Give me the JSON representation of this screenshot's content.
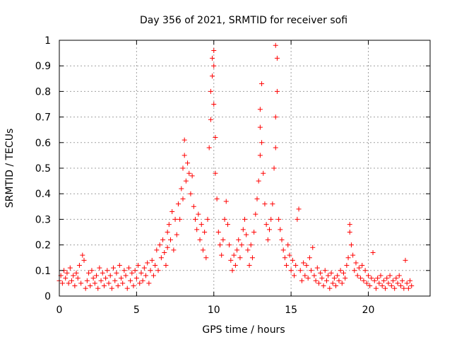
{
  "chart_data": {
    "type": "scatter",
    "title": "Day 356 of 2021, SRMTID for receiver sofi",
    "xlabel": "GPS time / hours",
    "ylabel": "SRMTID / TECUs",
    "xlim": [
      0,
      24
    ],
    "ylim": [
      0,
      1
    ],
    "x_ticks": [
      {
        "value": 0,
        "label": "0"
      },
      {
        "value": 5,
        "label": "5"
      },
      {
        "value": 10,
        "label": "10"
      },
      {
        "value": 15,
        "label": "15"
      },
      {
        "value": 20,
        "label": "20"
      }
    ],
    "y_ticks": [
      {
        "value": 0,
        "label": "0"
      },
      {
        "value": 0.1,
        "label": "0.1"
      },
      {
        "value": 0.2,
        "label": "0.2"
      },
      {
        "value": 0.3,
        "label": "0.3"
      },
      {
        "value": 0.4,
        "label": "0.4"
      },
      {
        "value": 0.5,
        "label": "0.5"
      },
      {
        "value": 0.6,
        "label": "0.6"
      },
      {
        "value": 0.7,
        "label": "0.7"
      },
      {
        "value": 0.8,
        "label": "0.8"
      },
      {
        "value": 0.9,
        "label": "0.9"
      },
      {
        "value": 1,
        "label": "1"
      }
    ],
    "grid": true,
    "marker": "plus",
    "color": "#ff0000",
    "series": [
      {
        "name": "SRMTID",
        "points": [
          [
            0.0,
            0.06
          ],
          [
            0.1,
            0.08
          ],
          [
            0.2,
            0.05
          ],
          [
            0.3,
            0.1
          ],
          [
            0.4,
            0.07
          ],
          [
            0.5,
            0.09
          ],
          [
            0.6,
            0.05
          ],
          [
            0.7,
            0.11
          ],
          [
            0.8,
            0.06
          ],
          [
            0.9,
            0.08
          ],
          [
            1.0,
            0.04
          ],
          [
            1.1,
            0.09
          ],
          [
            1.2,
            0.07
          ],
          [
            1.3,
            0.12
          ],
          [
            1.4,
            0.05
          ],
          [
            1.5,
            0.16
          ],
          [
            1.6,
            0.14
          ],
          [
            1.7,
            0.03
          ],
          [
            1.8,
            0.06
          ],
          [
            1.9,
            0.09
          ],
          [
            2.0,
            0.04
          ],
          [
            2.1,
            0.1
          ],
          [
            2.2,
            0.07
          ],
          [
            2.3,
            0.05
          ],
          [
            2.4,
            0.08
          ],
          [
            2.5,
            0.03
          ],
          [
            2.6,
            0.11
          ],
          [
            2.7,
            0.06
          ],
          [
            2.8,
            0.09
          ],
          [
            2.9,
            0.04
          ],
          [
            3.0,
            0.07
          ],
          [
            3.1,
            0.1
          ],
          [
            3.2,
            0.05
          ],
          [
            3.3,
            0.08
          ],
          [
            3.4,
            0.03
          ],
          [
            3.5,
            0.11
          ],
          [
            3.6,
            0.06
          ],
          [
            3.7,
            0.09
          ],
          [
            3.8,
            0.04
          ],
          [
            3.9,
            0.12
          ],
          [
            4.0,
            0.07
          ],
          [
            4.1,
            0.05
          ],
          [
            4.2,
            0.1
          ],
          [
            4.3,
            0.08
          ],
          [
            4.4,
            0.03
          ],
          [
            4.5,
            0.11
          ],
          [
            4.6,
            0.06
          ],
          [
            4.7,
            0.09
          ],
          [
            4.8,
            0.04
          ],
          [
            4.9,
            0.1
          ],
          [
            5.0,
            0.07
          ],
          [
            5.1,
            0.12
          ],
          [
            5.2,
            0.05
          ],
          [
            5.3,
            0.09
          ],
          [
            5.4,
            0.06
          ],
          [
            5.5,
            0.11
          ],
          [
            5.6,
            0.08
          ],
          [
            5.7,
            0.13
          ],
          [
            5.8,
            0.05
          ],
          [
            5.9,
            0.1
          ],
          [
            6.0,
            0.14
          ],
          [
            6.1,
            0.08
          ],
          [
            6.2,
            0.12
          ],
          [
            6.3,
            0.18
          ],
          [
            6.4,
            0.1
          ],
          [
            6.5,
            0.2
          ],
          [
            6.6,
            0.15
          ],
          [
            6.7,
            0.22
          ],
          [
            6.8,
            0.17
          ],
          [
            6.9,
            0.12
          ],
          [
            7.0,
            0.25
          ],
          [
            7.0,
            0.19
          ],
          [
            7.1,
            0.28
          ],
          [
            7.2,
            0.22
          ],
          [
            7.3,
            0.33
          ],
          [
            7.4,
            0.18
          ],
          [
            7.5,
            0.3
          ],
          [
            7.6,
            0.24
          ],
          [
            7.7,
            0.36
          ],
          [
            7.8,
            0.3
          ],
          [
            7.9,
            0.42
          ],
          [
            8.0,
            0.5
          ],
          [
            8.0,
            0.38
          ],
          [
            8.1,
            0.61
          ],
          [
            8.1,
            0.55
          ],
          [
            8.2,
            0.45
          ],
          [
            8.3,
            0.52
          ],
          [
            8.4,
            0.48
          ],
          [
            8.5,
            0.4
          ],
          [
            8.6,
            0.47
          ],
          [
            8.7,
            0.35
          ],
          [
            8.8,
            0.3
          ],
          [
            8.9,
            0.26
          ],
          [
            9.0,
            0.32
          ],
          [
            9.1,
            0.22
          ],
          [
            9.2,
            0.28
          ],
          [
            9.3,
            0.18
          ],
          [
            9.4,
            0.25
          ],
          [
            9.5,
            0.15
          ],
          [
            9.6,
            0.3
          ],
          [
            9.7,
            0.58
          ],
          [
            9.8,
            0.69
          ],
          [
            9.8,
            0.8
          ],
          [
            9.9,
            0.86
          ],
          [
            9.9,
            0.93
          ],
          [
            10.0,
            0.96
          ],
          [
            10.0,
            0.9
          ],
          [
            10.0,
            0.75
          ],
          [
            10.1,
            0.62
          ],
          [
            10.1,
            0.48
          ],
          [
            10.2,
            0.38
          ],
          [
            10.3,
            0.25
          ],
          [
            10.4,
            0.2
          ],
          [
            10.5,
            0.16
          ],
          [
            10.6,
            0.22
          ],
          [
            10.7,
            0.3
          ],
          [
            10.8,
            0.37
          ],
          [
            10.9,
            0.28
          ],
          [
            11.0,
            0.2
          ],
          [
            11.1,
            0.14
          ],
          [
            11.2,
            0.1
          ],
          [
            11.3,
            0.16
          ],
          [
            11.4,
            0.12
          ],
          [
            11.5,
            0.18
          ],
          [
            11.6,
            0.22
          ],
          [
            11.7,
            0.15
          ],
          [
            11.8,
            0.2
          ],
          [
            11.9,
            0.26
          ],
          [
            12.0,
            0.3
          ],
          [
            12.1,
            0.24
          ],
          [
            12.2,
            0.18
          ],
          [
            12.3,
            0.12
          ],
          [
            12.4,
            0.2
          ],
          [
            12.5,
            0.15
          ],
          [
            12.6,
            0.25
          ],
          [
            12.7,
            0.32
          ],
          [
            12.8,
            0.38
          ],
          [
            12.9,
            0.45
          ],
          [
            13.0,
            0.55
          ],
          [
            13.0,
            0.66
          ],
          [
            13.0,
            0.73
          ],
          [
            13.1,
            0.83
          ],
          [
            13.1,
            0.6
          ],
          [
            13.2,
            0.48
          ],
          [
            13.3,
            0.36
          ],
          [
            13.4,
            0.28
          ],
          [
            13.5,
            0.22
          ],
          [
            13.6,
            0.26
          ],
          [
            13.7,
            0.3
          ],
          [
            13.8,
            0.36
          ],
          [
            13.9,
            0.5
          ],
          [
            14.0,
            0.58
          ],
          [
            14.0,
            0.7
          ],
          [
            14.1,
            0.8
          ],
          [
            14.1,
            0.93
          ],
          [
            14.0,
            0.98
          ],
          [
            14.2,
            0.3
          ],
          [
            14.3,
            0.26
          ],
          [
            14.4,
            0.22
          ],
          [
            14.5,
            0.18
          ],
          [
            14.6,
            0.15
          ],
          [
            14.7,
            0.12
          ],
          [
            14.8,
            0.2
          ],
          [
            14.9,
            0.16
          ],
          [
            15.0,
            0.1
          ],
          [
            15.1,
            0.14
          ],
          [
            15.2,
            0.08
          ],
          [
            15.3,
            0.12
          ],
          [
            15.4,
            0.3
          ],
          [
            15.5,
            0.34
          ],
          [
            15.6,
            0.1
          ],
          [
            15.7,
            0.06
          ],
          [
            15.8,
            0.13
          ],
          [
            15.9,
            0.08
          ],
          [
            16.0,
            0.12
          ],
          [
            16.1,
            0.07
          ],
          [
            16.2,
            0.15
          ],
          [
            16.3,
            0.1
          ],
          [
            16.4,
            0.19
          ],
          [
            16.5,
            0.08
          ],
          [
            16.6,
            0.06
          ],
          [
            16.7,
            0.11
          ],
          [
            16.8,
            0.05
          ],
          [
            16.9,
            0.09
          ],
          [
            17.0,
            0.07
          ],
          [
            17.1,
            0.04
          ],
          [
            17.2,
            0.1
          ],
          [
            17.3,
            0.06
          ],
          [
            17.4,
            0.08
          ],
          [
            17.5,
            0.03
          ],
          [
            17.6,
            0.09
          ],
          [
            17.7,
            0.05
          ],
          [
            17.8,
            0.07
          ],
          [
            17.9,
            0.04
          ],
          [
            18.0,
            0.08
          ],
          [
            18.1,
            0.06
          ],
          [
            18.2,
            0.1
          ],
          [
            18.3,
            0.05
          ],
          [
            18.4,
            0.09
          ],
          [
            18.5,
            0.07
          ],
          [
            18.6,
            0.12
          ],
          [
            18.7,
            0.15
          ],
          [
            18.8,
            0.25
          ],
          [
            18.8,
            0.28
          ],
          [
            18.9,
            0.2
          ],
          [
            19.0,
            0.16
          ],
          [
            19.1,
            0.1
          ],
          [
            19.2,
            0.13
          ],
          [
            19.3,
            0.08
          ],
          [
            19.4,
            0.11
          ],
          [
            19.5,
            0.07
          ],
          [
            19.6,
            0.12
          ],
          [
            19.7,
            0.06
          ],
          [
            19.8,
            0.1
          ],
          [
            19.9,
            0.05
          ],
          [
            20.0,
            0.08
          ],
          [
            20.1,
            0.04
          ],
          [
            20.2,
            0.07
          ],
          [
            20.3,
            0.17
          ],
          [
            20.4,
            0.06
          ],
          [
            20.5,
            0.03
          ],
          [
            20.6,
            0.07
          ],
          [
            20.7,
            0.05
          ],
          [
            20.8,
            0.08
          ],
          [
            20.9,
            0.04
          ],
          [
            21.0,
            0.06
          ],
          [
            21.1,
            0.03
          ],
          [
            21.2,
            0.07
          ],
          [
            21.3,
            0.05
          ],
          [
            21.4,
            0.08
          ],
          [
            21.5,
            0.04
          ],
          [
            21.6,
            0.06
          ],
          [
            21.7,
            0.03
          ],
          [
            21.8,
            0.07
          ],
          [
            21.9,
            0.05
          ],
          [
            22.0,
            0.08
          ],
          [
            22.1,
            0.04
          ],
          [
            22.2,
            0.06
          ],
          [
            22.3,
            0.03
          ],
          [
            22.4,
            0.14
          ],
          [
            22.5,
            0.05
          ],
          [
            22.6,
            0.03
          ],
          [
            22.7,
            0.06
          ],
          [
            22.8,
            0.04
          ]
        ]
      }
    ]
  }
}
